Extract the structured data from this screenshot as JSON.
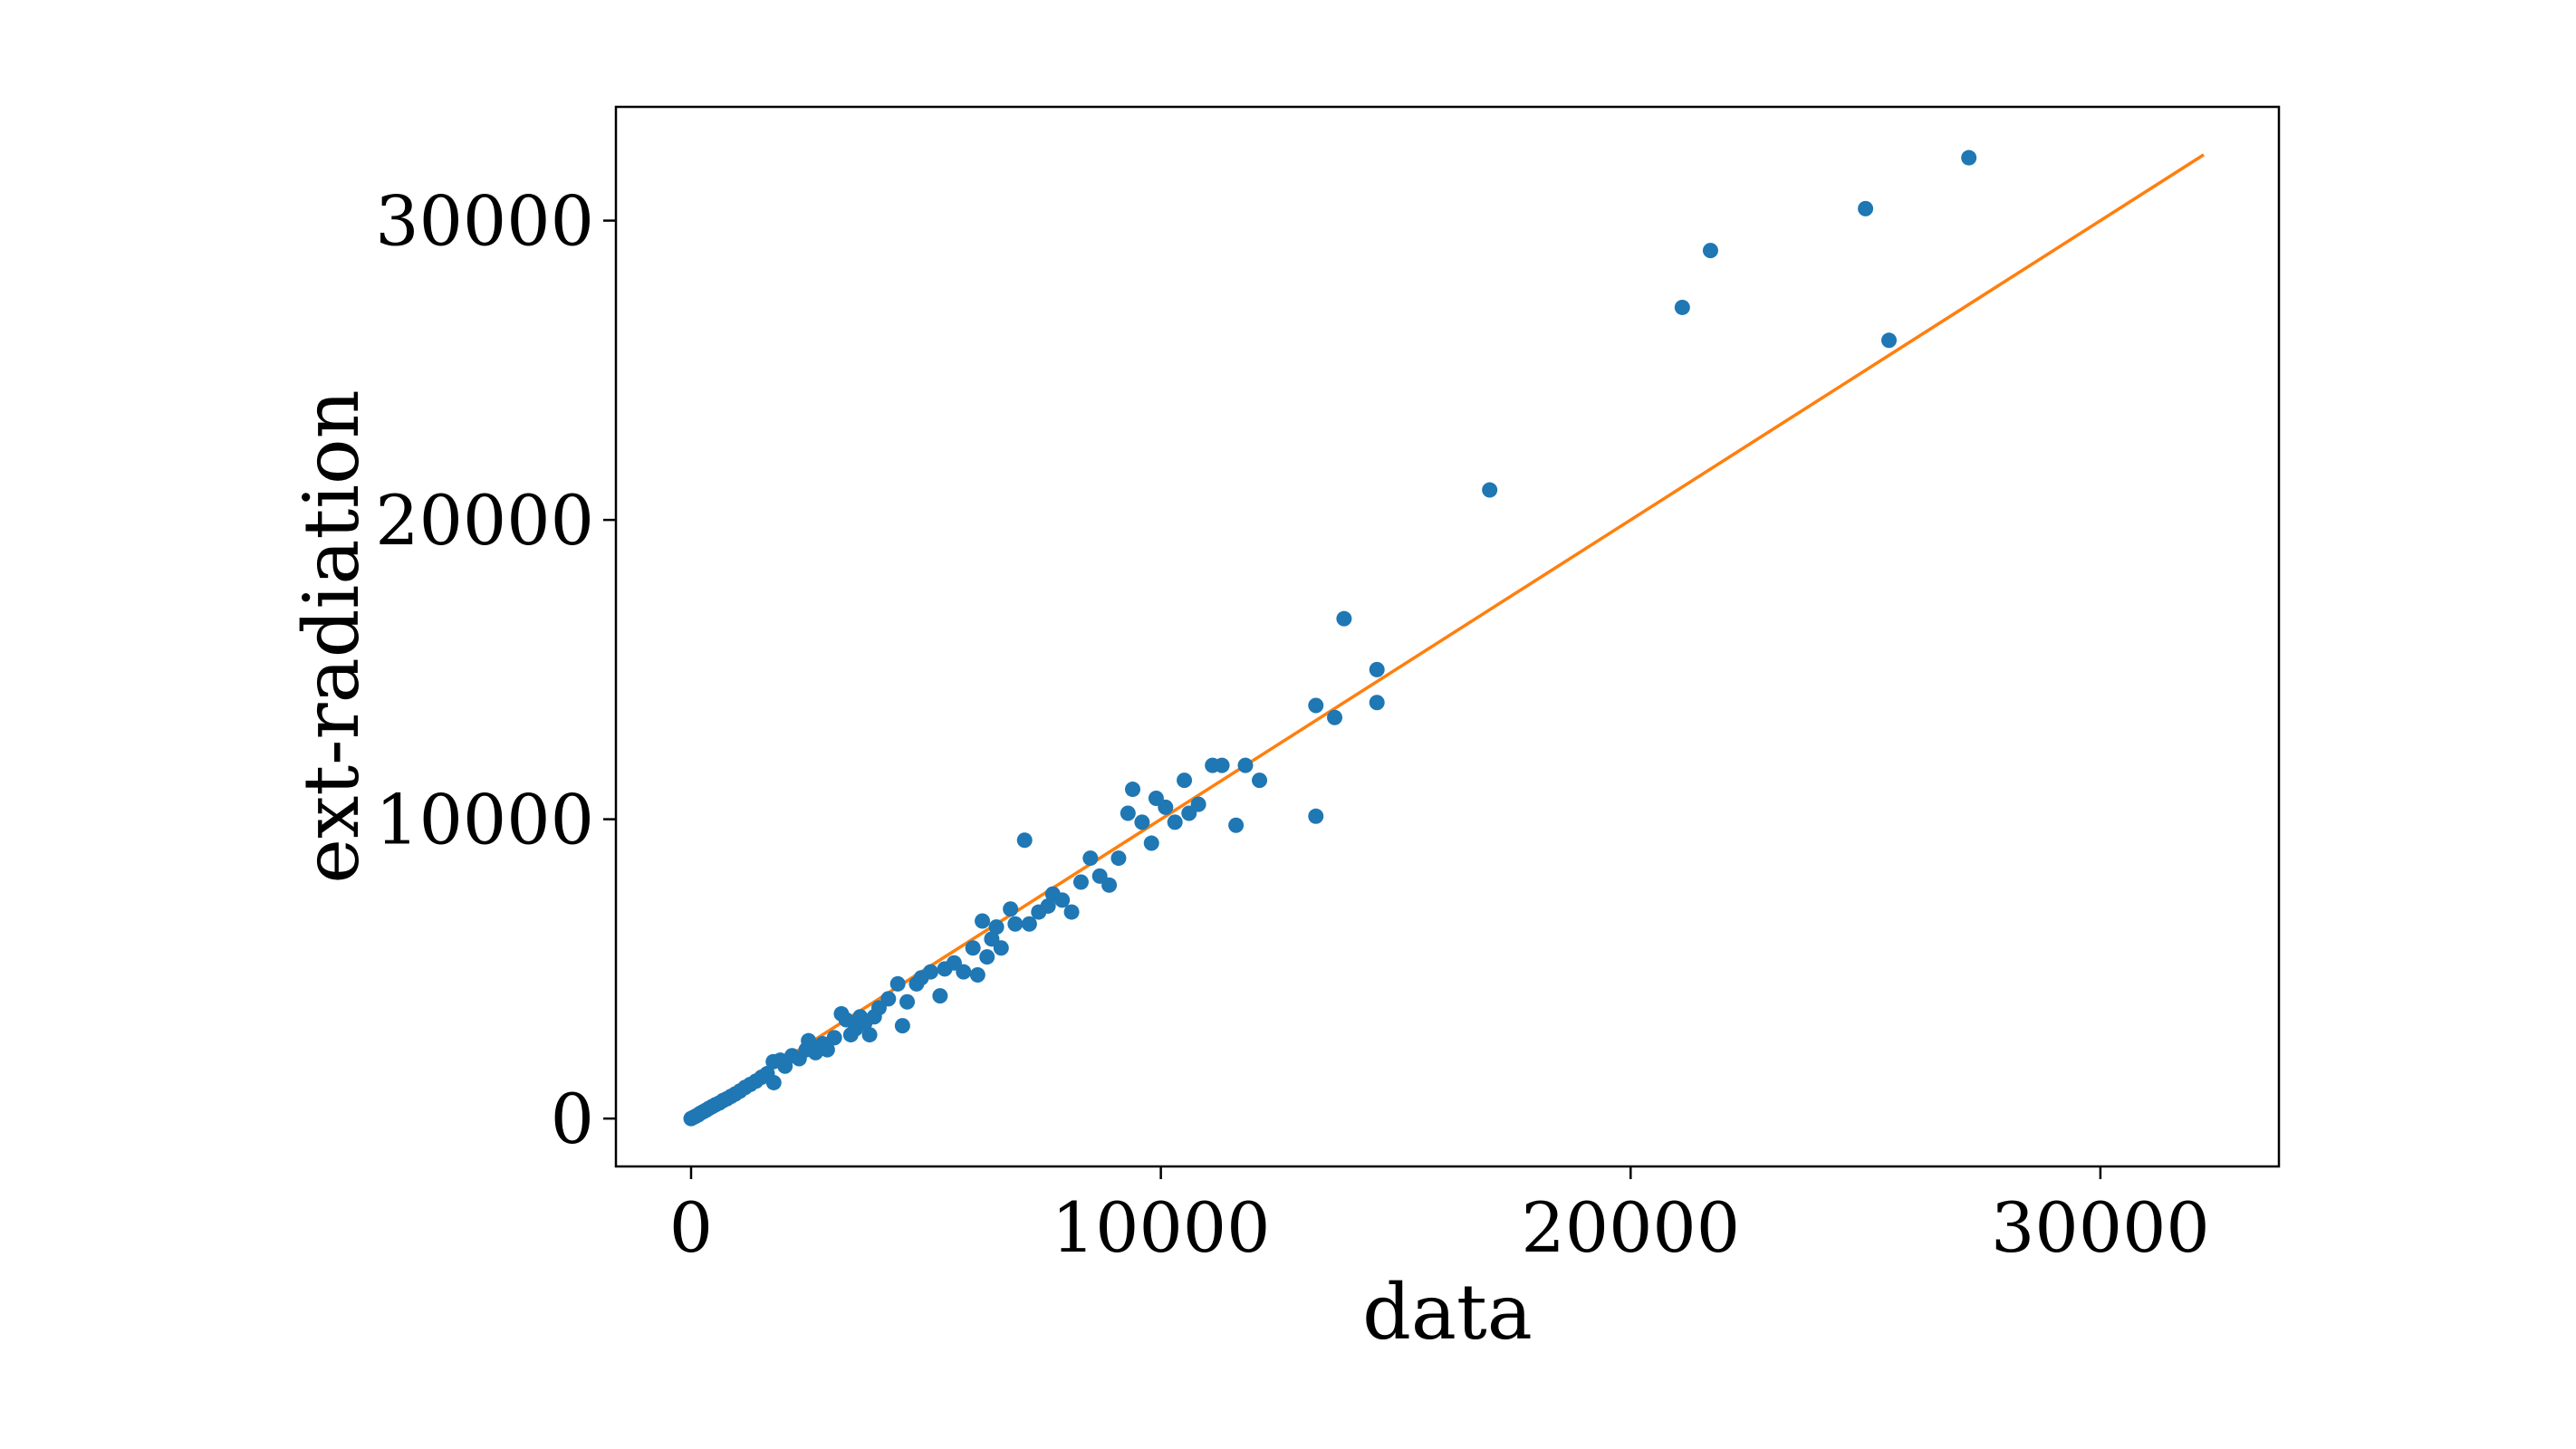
{
  "chart_data": {
    "type": "scatter",
    "title": "",
    "xlabel": "data",
    "ylabel": "ext-radiation",
    "xlim": [
      -1600,
      33800
    ],
    "ylim": [
      -1600,
      33800
    ],
    "xticks": [
      0,
      10000,
      20000,
      30000
    ],
    "yticks": [
      0,
      10000,
      20000,
      30000
    ],
    "xtick_labels": [
      "0",
      "10000",
      "20000",
      "30000"
    ],
    "ytick_labels": [
      "0",
      "10000",
      "20000",
      "30000"
    ],
    "grid": false,
    "legend": "none",
    "colors": {
      "points": "#1f77b4",
      "line": "#ff7f0e",
      "axes": "#000000"
    },
    "series": [
      {
        "kind": "scatter",
        "points": [
          [
            0,
            0
          ],
          [
            50,
            40
          ],
          [
            100,
            80
          ],
          [
            150,
            120
          ],
          [
            200,
            180
          ],
          [
            260,
            230
          ],
          [
            320,
            280
          ],
          [
            380,
            340
          ],
          [
            450,
            400
          ],
          [
            520,
            460
          ],
          [
            600,
            520
          ],
          [
            680,
            600
          ],
          [
            760,
            660
          ],
          [
            850,
            740
          ],
          [
            940,
            820
          ],
          [
            1040,
            920
          ],
          [
            1150,
            1040
          ],
          [
            1260,
            1140
          ],
          [
            1380,
            1250
          ],
          [
            1500,
            1380
          ],
          [
            1620,
            1500
          ],
          [
            1750,
            1900
          ],
          [
            1760,
            1200
          ],
          [
            1900,
            1950
          ],
          [
            2000,
            1750
          ],
          [
            2150,
            2100
          ],
          [
            2300,
            2000
          ],
          [
            2450,
            2300
          ],
          [
            2500,
            2600
          ],
          [
            2650,
            2200
          ],
          [
            2800,
            2500
          ],
          [
            2900,
            2300
          ],
          [
            3050,
            2700
          ],
          [
            3200,
            3500
          ],
          [
            3300,
            3300
          ],
          [
            3400,
            2800
          ],
          [
            3500,
            3000
          ],
          [
            3600,
            3400
          ],
          [
            3700,
            3200
          ],
          [
            3800,
            2800
          ],
          [
            3900,
            3400
          ],
          [
            4000,
            3700
          ],
          [
            4200,
            4000
          ],
          [
            4400,
            4500
          ],
          [
            4500,
            3100
          ],
          [
            4600,
            3900
          ],
          [
            4800,
            4500
          ],
          [
            4900,
            4700
          ],
          [
            5100,
            4900
          ],
          [
            5300,
            4100
          ],
          [
            5400,
            5000
          ],
          [
            5600,
            5200
          ],
          [
            5800,
            4900
          ],
          [
            6000,
            5700
          ],
          [
            6100,
            4800
          ],
          [
            6200,
            6600
          ],
          [
            6300,
            5400
          ],
          [
            6400,
            6000
          ],
          [
            6500,
            6400
          ],
          [
            6600,
            5700
          ],
          [
            6800,
            7000
          ],
          [
            6900,
            6500
          ],
          [
            7100,
            9300
          ],
          [
            7200,
            6500
          ],
          [
            7400,
            6900
          ],
          [
            7600,
            7100
          ],
          [
            7700,
            7500
          ],
          [
            7900,
            7300
          ],
          [
            8100,
            6900
          ],
          [
            8300,
            7900
          ],
          [
            8500,
            8700
          ],
          [
            8700,
            8100
          ],
          [
            8900,
            7800
          ],
          [
            9100,
            8700
          ],
          [
            9300,
            10200
          ],
          [
            9400,
            11000
          ],
          [
            9600,
            9900
          ],
          [
            9800,
            9200
          ],
          [
            9900,
            10700
          ],
          [
            10100,
            10400
          ],
          [
            10300,
            9900
          ],
          [
            10500,
            11300
          ],
          [
            10600,
            10200
          ],
          [
            10800,
            10500
          ],
          [
            11100,
            11800
          ],
          [
            11300,
            11800
          ],
          [
            11600,
            9800
          ],
          [
            11800,
            11800
          ],
          [
            12100,
            11300
          ],
          [
            13300,
            13800
          ],
          [
            13300,
            10100
          ],
          [
            13700,
            13400
          ],
          [
            13900,
            16700
          ],
          [
            14600,
            15000
          ],
          [
            14600,
            13900
          ],
          [
            17000,
            21000
          ],
          [
            21100,
            27100
          ],
          [
            21700,
            29000
          ],
          [
            25000,
            30400
          ],
          [
            25500,
            26000
          ],
          [
            27200,
            32100
          ]
        ]
      },
      {
        "kind": "line",
        "points": [
          [
            0,
            0
          ],
          [
            32200,
            32200
          ]
        ]
      }
    ]
  }
}
